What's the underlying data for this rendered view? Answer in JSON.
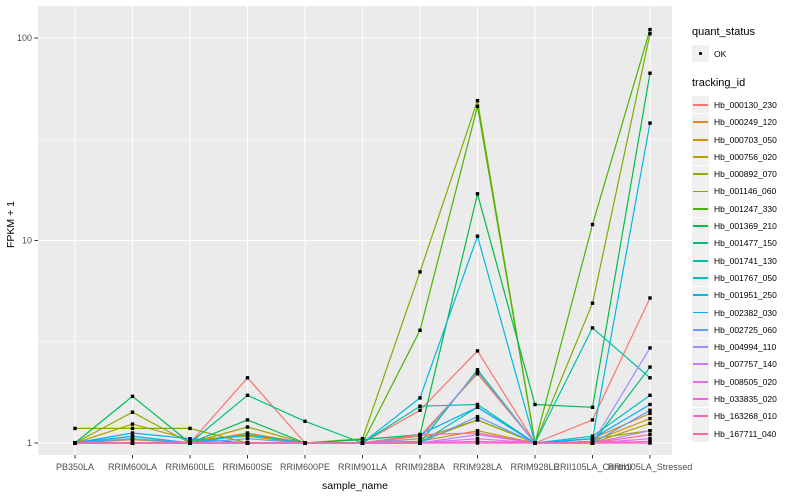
{
  "figure": {
    "background": "#FFFFFF",
    "panel_background": "#EBEBEB",
    "grid_color": "#FFFFFF",
    "axis_text_color": "#4D4D4D",
    "axis_title_color": "#000000",
    "tick_mark_color": "#333333",
    "marker_color": "#000000",
    "legend_key_background": "#F0F0F0"
  },
  "chart_data": {
    "type": "line",
    "title": "",
    "xlabel": "sample_name",
    "ylabel": "FPKM + 1",
    "y_scale": "log10",
    "y_ticks": [
      1,
      10,
      100
    ],
    "y_tick_labels": [
      "1",
      "10",
      "100"
    ],
    "y_minor_ticks": [
      3.162,
      31.62
    ],
    "ylim": [
      0.87,
      140
    ],
    "grid": true,
    "legend_position": "right",
    "categories": [
      "PB350LA",
      "RRIM600LA",
      "RRIM600LE",
      "RRIM600SE",
      "RRIM600PE",
      "RRIM901LA",
      "RRIM928BA",
      "RRIM928LA",
      "RRIM928LE",
      "RRII105LA_Control",
      "RRII105LA_Stressed"
    ],
    "legend": {
      "quant_status_title": "quant_status",
      "ok_label": "OK",
      "tracking_id_title": "tracking_id"
    },
    "series": [
      {
        "name": "Hb_000130_230",
        "color": "#F8766D",
        "values": [
          1.0,
          1.08,
          1.0,
          2.1,
          1.0,
          1.0,
          1.45,
          2.85,
          1.0,
          1.3,
          5.2
        ]
      },
      {
        "name": "Hb_000249_120",
        "color": "#E88526",
        "values": [
          1.0,
          1.04,
          1.0,
          1.12,
          1.0,
          1.0,
          1.08,
          2.2,
          1.0,
          1.05,
          1.4
        ]
      },
      {
        "name": "Hb_000703_050",
        "color": "#D39200",
        "values": [
          1.0,
          1.0,
          1.0,
          1.0,
          1.0,
          1.0,
          1.05,
          1.3,
          1.0,
          1.02,
          1.32
        ]
      },
      {
        "name": "Hb_000756_020",
        "color": "#B79F00",
        "values": [
          1.0,
          1.24,
          1.04,
          1.08,
          1.0,
          1.0,
          1.02,
          1.15,
          1.0,
          1.0,
          1.25
        ]
      },
      {
        "name": "Hb_000892_070",
        "color": "#93AA00",
        "values": [
          1.0,
          1.42,
          1.0,
          1.2,
          1.0,
          1.0,
          1.02,
          1.3,
          1.0,
          1.05,
          1.15
        ]
      },
      {
        "name": "Hb_001146_060",
        "color": "#7CAE00",
        "values": [
          1.18,
          1.18,
          1.18,
          1.0,
          1.0,
          1.05,
          7.0,
          49.0,
          1.0,
          4.9,
          105.0
        ]
      },
      {
        "name": "Hb_001247_330",
        "color": "#49B500",
        "values": [
          1.0,
          1.0,
          1.0,
          1.0,
          1.0,
          1.0,
          3.6,
          46.0,
          1.0,
          12.0,
          110.0
        ]
      },
      {
        "name": "Hb_001369_210",
        "color": "#00BB4E",
        "values": [
          1.0,
          1.7,
          1.0,
          1.3,
          1.0,
          1.04,
          1.1,
          17.0,
          1.55,
          1.5,
          67.0
        ]
      },
      {
        "name": "Hb_001477_150",
        "color": "#00BF7D",
        "values": [
          1.0,
          1.0,
          1.0,
          1.72,
          1.28,
          1.0,
          1.0,
          2.3,
          1.0,
          1.0,
          2.37
        ]
      },
      {
        "name": "Hb_001741_130",
        "color": "#00C1A7",
        "values": [
          1.0,
          1.0,
          1.0,
          1.1,
          1.0,
          1.0,
          1.52,
          1.55,
          1.0,
          3.7,
          2.1
        ]
      },
      {
        "name": "Hb_001767_050",
        "color": "#00BFC4",
        "values": [
          1.0,
          1.05,
          1.0,
          1.0,
          1.0,
          1.0,
          1.0,
          1.5,
          1.0,
          1.08,
          1.72
        ]
      },
      {
        "name": "Hb_001951_250",
        "color": "#00BADE",
        "values": [
          1.0,
          1.08,
          1.0,
          1.1,
          1.0,
          1.0,
          1.67,
          10.5,
          1.0,
          1.05,
          38.0
        ]
      },
      {
        "name": "Hb_002382_030",
        "color": "#00B0F6",
        "values": [
          1.0,
          1.12,
          1.05,
          1.0,
          1.0,
          1.0,
          1.1,
          1.5,
          1.0,
          1.05,
          1.55
        ]
      },
      {
        "name": "Hb_002725_060",
        "color": "#619CFF",
        "values": [
          1.0,
          1.05,
          1.0,
          1.05,
          1.0,
          1.0,
          1.0,
          1.35,
          1.0,
          1.0,
          1.45
        ]
      },
      {
        "name": "Hb_004994_110",
        "color": "#9590FF",
        "values": [
          1.0,
          1.0,
          1.0,
          1.0,
          1.0,
          1.0,
          1.05,
          2.25,
          1.0,
          1.0,
          2.95
        ]
      },
      {
        "name": "Hb_007757_140",
        "color": "#C77CFF",
        "values": [
          1.0,
          1.0,
          1.0,
          1.0,
          1.0,
          1.0,
          1.0,
          1.1,
          1.0,
          1.0,
          1.15
        ]
      },
      {
        "name": "Hb_008505_020",
        "color": "#E76BF3",
        "values": [
          1.0,
          1.0,
          1.0,
          1.0,
          1.0,
          1.0,
          1.0,
          1.05,
          1.0,
          1.0,
          1.05
        ]
      },
      {
        "name": "Hb_033835_020",
        "color": "#FA62DB",
        "values": [
          1.0,
          1.0,
          1.0,
          1.0,
          1.0,
          1.0,
          1.0,
          1.02,
          1.0,
          1.0,
          1.02
        ]
      },
      {
        "name": "Hb_163268_010",
        "color": "#FF62BC",
        "values": [
          1.0,
          1.0,
          1.0,
          1.0,
          1.0,
          1.0,
          1.0,
          1.0,
          1.0,
          1.0,
          1.0
        ]
      },
      {
        "name": "Hb_167711_040",
        "color": "#FF6A98",
        "values": [
          1.0,
          1.0,
          1.0,
          1.0,
          1.0,
          1.0,
          1.1,
          1.12,
          1.0,
          1.0,
          1.1
        ]
      }
    ]
  }
}
